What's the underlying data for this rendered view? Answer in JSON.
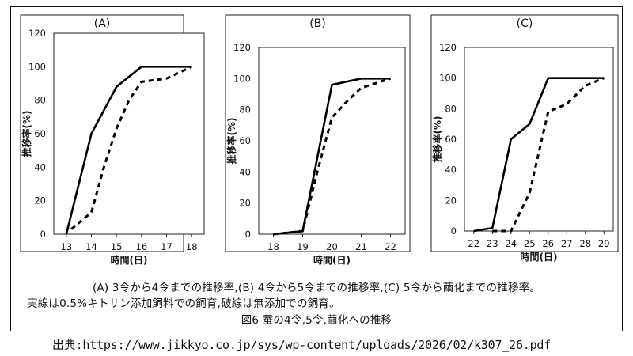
{
  "chart_data": [
    {
      "type": "line",
      "title": "(A)",
      "xlabel": "時間(日)",
      "ylabel": "推移率(%)",
      "x_ticks": [
        13,
        14,
        15,
        16,
        17,
        18
      ],
      "y_ticks": [
        0,
        20,
        40,
        60,
        80,
        100,
        120
      ],
      "xlim": [
        12.5,
        18.5
      ],
      "ylim": [
        0,
        120
      ],
      "grid": false,
      "series": [
        {
          "style": "solid",
          "points": [
            [
              13,
              0
            ],
            [
              14,
              60
            ],
            [
              15,
              88
            ],
            [
              16,
              100
            ],
            [
              17,
              100
            ],
            [
              18,
              100
            ]
          ]
        },
        {
          "style": "dashed",
          "points": [
            [
              13.2,
              3
            ],
            [
              14,
              13
            ],
            [
              14.5,
              40
            ],
            [
              15,
              63
            ],
            [
              15.5,
              80
            ],
            [
              16,
              91
            ],
            [
              17,
              93
            ],
            [
              18,
              100
            ]
          ]
        }
      ]
    },
    {
      "type": "line",
      "title": "(B)",
      "xlabel": "時間(日)",
      "ylabel": "推移率(%)",
      "x_ticks": [
        18,
        19,
        20,
        21,
        22
      ],
      "y_ticks": [
        0,
        20,
        40,
        60,
        80,
        100,
        120
      ],
      "xlim": [
        17.5,
        22.5
      ],
      "ylim": [
        0,
        120
      ],
      "grid": false,
      "series": [
        {
          "style": "solid",
          "points": [
            [
              18,
              0
            ],
            [
              19,
              2
            ],
            [
              20,
              96
            ],
            [
              21,
              100
            ],
            [
              22,
              100
            ]
          ]
        },
        {
          "style": "dashed",
          "points": [
            [
              18,
              0
            ],
            [
              19,
              2
            ],
            [
              19.5,
              40
            ],
            [
              20,
              75
            ],
            [
              20.5,
              85
            ],
            [
              21,
              94
            ],
            [
              22,
              100
            ]
          ]
        }
      ]
    },
    {
      "type": "line",
      "title": "(C)",
      "xlabel": "時間(日)",
      "ylabel": "推移率(%)",
      "x_ticks": [
        22,
        23,
        24,
        25,
        26,
        27,
        28,
        29
      ],
      "y_ticks": [
        0,
        20,
        40,
        60,
        80,
        100,
        120
      ],
      "xlim": [
        21.5,
        29.5
      ],
      "ylim": [
        0,
        120
      ],
      "grid": false,
      "series": [
        {
          "style": "solid",
          "points": [
            [
              22,
              0
            ],
            [
              23,
              2
            ],
            [
              24,
              60
            ],
            [
              25,
              70
            ],
            [
              26,
              100
            ],
            [
              27,
              100
            ],
            [
              28,
              100
            ],
            [
              29,
              100
            ]
          ]
        },
        {
          "style": "dashed",
          "points": [
            [
              23,
              0
            ],
            [
              24,
              0
            ],
            [
              25,
              25
            ],
            [
              26,
              78
            ],
            [
              27,
              83
            ],
            [
              28,
              95
            ],
            [
              29,
              100
            ]
          ]
        }
      ]
    }
  ],
  "caption": {
    "line1": "(A) 3令から4令までの推移率,(B) 4令から5令までの推移率,(C) 5令から繭化までの推移率。",
    "line2": "実線は0.5%キトサン添加飼料での飼育,破線は無添加での飼育。",
    "figure_title": "図6  蚕の4令,5令,繭化への推移"
  },
  "source": "出典:https://www.jikkyo.co.jp/sys/wp-content/uploads/2026/02/k307_26.pdf"
}
